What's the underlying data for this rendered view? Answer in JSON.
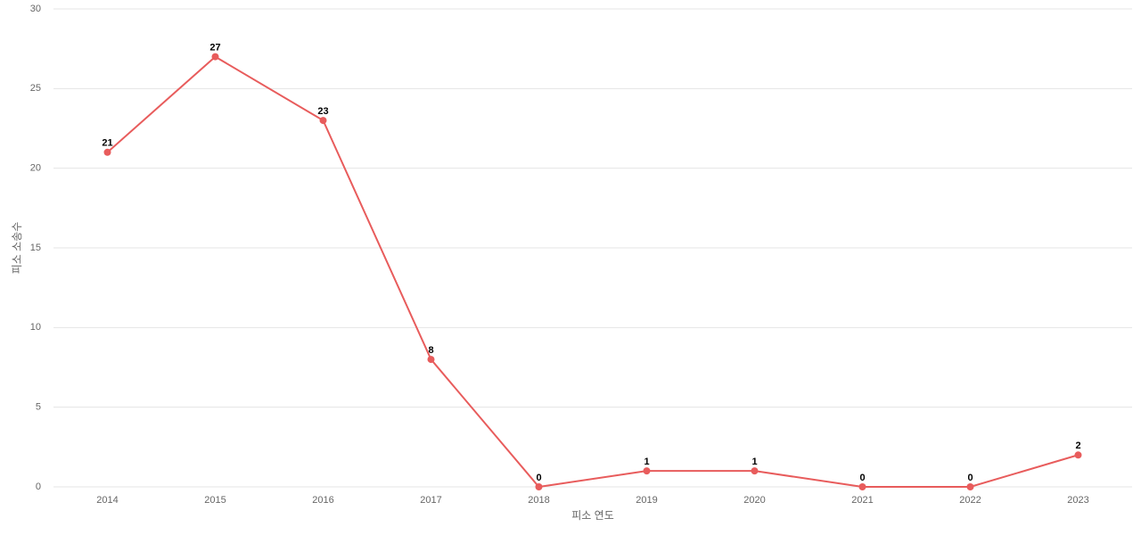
{
  "chart_data": {
    "type": "line",
    "x_label": "피소 연도",
    "y_label": "피소 소송수",
    "categories": [
      "2014",
      "2015",
      "2016",
      "2017",
      "2018",
      "2019",
      "2020",
      "2021",
      "2022",
      "2023"
    ],
    "series": [
      {
        "color": "#e85c5c",
        "values": [
          21,
          27,
          23,
          8,
          0,
          1,
          1,
          0,
          0,
          2
        ]
      }
    ],
    "ylim": [
      0,
      30
    ],
    "yticks": [
      0,
      5,
      10,
      15,
      20,
      25,
      30
    ],
    "grid": true
  }
}
